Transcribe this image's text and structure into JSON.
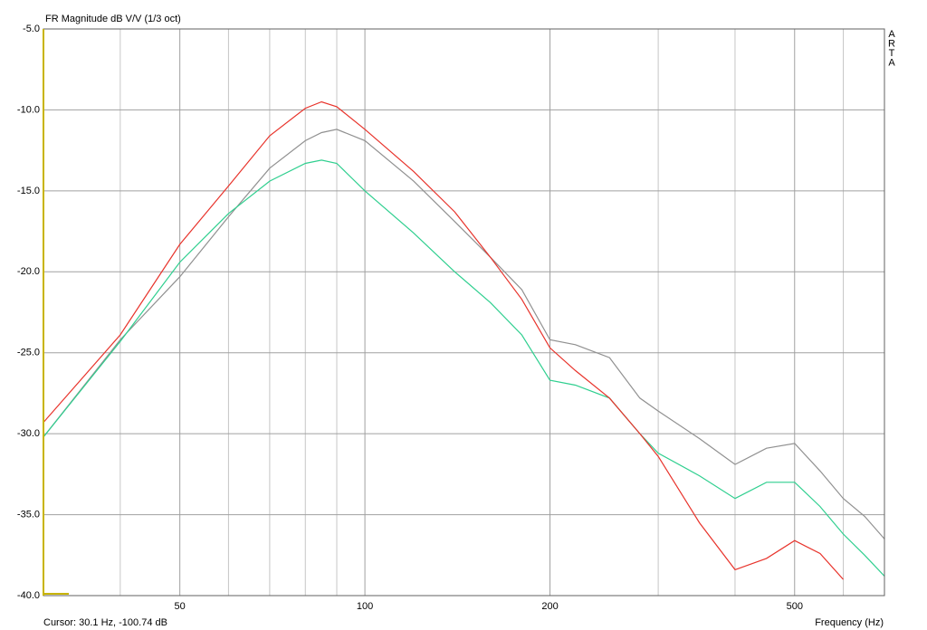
{
  "chart_data": {
    "type": "line",
    "title": "FR Magnitude dB V/V (1/3 oct)",
    "brand": "ARTA",
    "cursor": "Cursor: 30.1 Hz, -100.74 dB",
    "xlabel": "Frequency (Hz)",
    "log_x": true,
    "grid": true,
    "xlim": [
      30,
      700
    ],
    "ylim": [
      -40,
      -5
    ],
    "xticks": [
      50,
      100,
      200,
      500
    ],
    "x_minor_grid": [
      40,
      60,
      70,
      80,
      90,
      300,
      400,
      600
    ],
    "yticks": [
      {
        "value": -5,
        "label": "-5.0"
      },
      {
        "value": -10,
        "label": "-10.0"
      },
      {
        "value": -15,
        "label": "-15.0"
      },
      {
        "value": -20,
        "label": "-20.0"
      },
      {
        "value": -25,
        "label": "-25.0"
      },
      {
        "value": -30,
        "label": "-30.0"
      },
      {
        "value": -35,
        "label": "-35.0"
      },
      {
        "value": -40,
        "label": "-40.0"
      }
    ],
    "x": [
      30,
      40,
      50,
      60,
      70,
      80,
      85,
      90,
      100,
      120,
      140,
      160,
      180,
      200,
      220,
      250,
      280,
      300,
      350,
      400,
      450,
      500,
      550,
      600,
      650,
      700
    ],
    "series": [
      {
        "color": "#909090",
        "values": [
          -30.2,
          -24.2,
          -20.3,
          -16.6,
          -13.6,
          -11.9,
          -11.4,
          -11.2,
          -11.9,
          -14.4,
          -16.9,
          -19.1,
          -21.1,
          -24.2,
          -24.5,
          -25.3,
          -27.8,
          -28.6,
          -30.3,
          -31.9,
          -30.9,
          -30.6,
          -32.3,
          -34.0,
          -35.1,
          -36.5
        ]
      },
      {
        "color": "#2fcf8f",
        "values": [
          -30.2,
          -24.3,
          -19.4,
          -16.4,
          -14.4,
          -13.3,
          -13.1,
          -13.3,
          -15.0,
          -17.6,
          -20.0,
          -21.9,
          -23.9,
          -26.7,
          -27.0,
          -27.8,
          -30.0,
          -31.2,
          -32.6,
          -34.0,
          -33.0,
          -33.0,
          -34.5,
          -36.2,
          -37.5,
          -38.8
        ]
      },
      {
        "color": "#e8332b",
        "values": [
          -29.3,
          -23.9,
          -18.3,
          -14.7,
          -11.6,
          -9.9,
          -9.5,
          -9.8,
          -11.2,
          -13.8,
          -16.3,
          -19.1,
          -21.7,
          -24.7,
          -26.1,
          -27.8,
          -30.0,
          -31.4,
          -35.5,
          -38.4,
          -37.7,
          -36.6,
          -37.4,
          -39.0,
          null,
          null
        ]
      }
    ]
  }
}
